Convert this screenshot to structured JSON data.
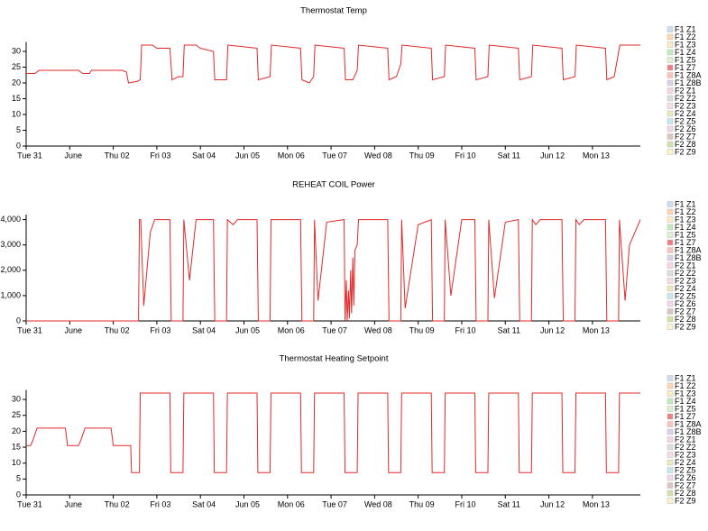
{
  "chart_data": [
    {
      "type": "line",
      "title": "Thermostat Temp",
      "xlim": [
        0,
        14.1
      ],
      "xticks": [
        {
          "value": 0,
          "label": "Tue 31"
        },
        {
          "value": 1,
          "label": "June"
        },
        {
          "value": 2,
          "label": "Thu 02"
        },
        {
          "value": 3,
          "label": "Fri 03"
        },
        {
          "value": 4,
          "label": "Sat 04"
        },
        {
          "value": 5,
          "label": "Jun 05"
        },
        {
          "value": 6,
          "label": "Mon 06"
        },
        {
          "value": 7,
          "label": "Tue 07"
        },
        {
          "value": 8,
          "label": "Wed 08"
        },
        {
          "value": 9,
          "label": "Thu 09"
        },
        {
          "value": 10,
          "label": "Fri 10"
        },
        {
          "value": 11,
          "label": "Sat 11"
        },
        {
          "value": 12,
          "label": "Jun 12"
        },
        {
          "value": 13,
          "label": "Mon 13"
        }
      ],
      "ylim": [
        0,
        33
      ],
      "yticks": [
        0,
        5,
        10,
        15,
        20,
        25,
        30
      ],
      "series": [
        {
          "name": "F1 Z1",
          "color": "#aec7e8",
          "x": [],
          "values": []
        },
        {
          "name": "F1 Z2",
          "color": "#ffbb78",
          "x": [],
          "values": []
        },
        {
          "name": "F1 Z3",
          "color": "#ffdd99",
          "x": [],
          "values": []
        },
        {
          "name": "F1 Z4",
          "color": "#98df8a",
          "x": [],
          "values": []
        },
        {
          "name": "F1 Z5",
          "color": "#c5e8b0",
          "x": [],
          "values": []
        },
        {
          "name": "F1 Z7",
          "color": "#e02a2a",
          "x": [
            0,
            0.2,
            0.3,
            1.2,
            1.3,
            1.45,
            1.5,
            2.2,
            2.3,
            2.35,
            2.55,
            2.62,
            2.65,
            2.9,
            3.0,
            3.3,
            3.35,
            3.5,
            3.6,
            3.63,
            3.9,
            4.0,
            4.3,
            4.33,
            4.6,
            4.63,
            5.3,
            5.33,
            5.6,
            5.63,
            6.3,
            6.33,
            6.5,
            6.6,
            6.63,
            7.3,
            7.33,
            7.5,
            7.6,
            7.63,
            8.3,
            8.33,
            8.5,
            8.6,
            8.63,
            9.3,
            9.33,
            9.6,
            9.63,
            10.3,
            10.33,
            10.6,
            10.63,
            11.3,
            11.33,
            11.6,
            11.63,
            12.3,
            12.33,
            12.6,
            12.63,
            13.3,
            13.33,
            13.5,
            13.63,
            14.1
          ],
          "values": [
            23,
            23,
            24,
            24,
            23,
            23,
            24,
            24,
            23.5,
            20,
            20.5,
            21,
            32,
            32,
            31,
            31,
            21,
            22,
            22,
            32,
            32,
            31,
            30,
            21,
            21,
            32,
            31,
            21,
            22,
            32,
            31,
            21,
            20,
            22,
            32,
            31,
            21,
            21,
            24,
            32,
            31,
            21,
            22,
            26,
            32,
            31,
            21,
            22,
            32,
            31,
            21,
            22,
            32,
            31,
            21,
            22,
            32,
            31,
            21,
            22,
            32,
            31,
            21,
            22,
            32,
            32
          ]
        },
        {
          "name": "F1 Z8A",
          "color": "#ff9896",
          "x": [],
          "values": []
        },
        {
          "name": "F1 Z8B",
          "color": "#c5b0d5",
          "x": [],
          "values": []
        },
        {
          "name": "F2 Z1",
          "color": "#f7b6d2",
          "x": [],
          "values": []
        },
        {
          "name": "F2 Z2",
          "color": "#c7c7c7",
          "x": [],
          "values": []
        },
        {
          "name": "F2 Z3",
          "color": "#f4c2d8",
          "x": [],
          "values": []
        },
        {
          "name": "F2 Z4",
          "color": "#dbdb8d",
          "x": [],
          "values": []
        },
        {
          "name": "F2 Z5",
          "color": "#9edae5",
          "x": [],
          "values": []
        },
        {
          "name": "F2 Z6",
          "color": "#e7bce0",
          "x": [],
          "values": []
        },
        {
          "name": "F2 Z7",
          "color": "#c49c94",
          "x": [],
          "values": []
        },
        {
          "name": "F2 Z8",
          "color": "#b5cf6b",
          "x": [],
          "values": []
        },
        {
          "name": "F2 Z9",
          "color": "#ffe9a0",
          "x": [],
          "values": []
        }
      ]
    },
    {
      "type": "line",
      "title": "REHEAT COIL Power",
      "xlim": [
        0,
        14.1
      ],
      "xticks": [
        {
          "value": 0,
          "label": "Tue 31"
        },
        {
          "value": 1,
          "label": "June"
        },
        {
          "value": 2,
          "label": "Thu 02"
        },
        {
          "value": 3,
          "label": "Fri 03"
        },
        {
          "value": 4,
          "label": "Sat 04"
        },
        {
          "value": 5,
          "label": "Jun 05"
        },
        {
          "value": 6,
          "label": "Mon 06"
        },
        {
          "value": 7,
          "label": "Tue 07"
        },
        {
          "value": 8,
          "label": "Wed 08"
        },
        {
          "value": 9,
          "label": "Thu 09"
        },
        {
          "value": 10,
          "label": "Fri 10"
        },
        {
          "value": 11,
          "label": "Sat 11"
        },
        {
          "value": 12,
          "label": "Jun 12"
        },
        {
          "value": 13,
          "label": "Mon 13"
        }
      ],
      "ylim": [
        0,
        4200
      ],
      "yticks": [
        0,
        {
          "value": 1000,
          "label": "1,000"
        },
        {
          "value": 2000,
          "label": "2,000"
        },
        {
          "value": 3000,
          "label": "3,000"
        },
        {
          "value": 4000,
          "label": "4,000"
        }
      ],
      "series": [
        {
          "name": "F1 Z1",
          "color": "#aec7e8",
          "x": [],
          "values": []
        },
        {
          "name": "F1 Z2",
          "color": "#ffbb78",
          "x": [],
          "values": []
        },
        {
          "name": "F1 Z3",
          "color": "#ffdd99",
          "x": [],
          "values": []
        },
        {
          "name": "F1 Z4",
          "color": "#98df8a",
          "x": [],
          "values": []
        },
        {
          "name": "F1 Z5",
          "color": "#c5e8b0",
          "x": [],
          "values": []
        },
        {
          "name": "F1 Z7",
          "color": "#e02a2a",
          "x": [
            0,
            2.58,
            2.6,
            2.63,
            2.7,
            2.85,
            2.95,
            3.3,
            3.33,
            3.6,
            3.62,
            3.75,
            3.9,
            4.3,
            4.33,
            4.6,
            4.62,
            4.75,
            4.85,
            5.3,
            5.33,
            5.6,
            5.62,
            6.3,
            6.33,
            6.6,
            6.62,
            6.7,
            6.9,
            7.3,
            7.32,
            7.35,
            7.37,
            7.4,
            7.42,
            7.45,
            7.47,
            7.5,
            7.52,
            7.55,
            7.6,
            7.63,
            8.3,
            8.33,
            8.6,
            8.62,
            8.7,
            9.0,
            9.3,
            9.33,
            9.6,
            9.62,
            9.75,
            10.0,
            10.3,
            10.33,
            10.6,
            10.62,
            10.75,
            11.0,
            11.3,
            11.33,
            11.6,
            11.62,
            11.7,
            11.8,
            12.3,
            12.33,
            12.6,
            12.62,
            12.7,
            12.8,
            13.3,
            13.33,
            13.6,
            13.62,
            13.75,
            13.85,
            14.1
          ],
          "values": [
            0,
            0,
            4000,
            4000,
            600,
            3500,
            4000,
            4000,
            0,
            0,
            4000,
            1600,
            4000,
            4000,
            0,
            0,
            4000,
            3800,
            4000,
            4000,
            0,
            0,
            4000,
            4000,
            0,
            0,
            4000,
            800,
            3900,
            4000,
            0,
            1600,
            0,
            1200,
            100,
            2000,
            300,
            2500,
            600,
            2800,
            3000,
            4000,
            4000,
            0,
            0,
            4000,
            500,
            3800,
            4000,
            0,
            0,
            4000,
            1000,
            4000,
            4000,
            0,
            0,
            4000,
            900,
            3900,
            4000,
            0,
            0,
            4000,
            3800,
            4000,
            4000,
            0,
            0,
            4000,
            3800,
            4000,
            4000,
            0,
            0,
            4000,
            800,
            3000,
            4000
          ]
        },
        {
          "name": "F1 Z8A",
          "color": "#ff9896",
          "x": [],
          "values": []
        },
        {
          "name": "F1 Z8B",
          "color": "#c5b0d5",
          "x": [],
          "values": []
        },
        {
          "name": "F2 Z1",
          "color": "#f7b6d2",
          "x": [],
          "values": []
        },
        {
          "name": "F2 Z2",
          "color": "#c7c7c7",
          "x": [],
          "values": []
        },
        {
          "name": "F2 Z3",
          "color": "#f4c2d8",
          "x": [],
          "values": []
        },
        {
          "name": "F2 Z4",
          "color": "#dbdb8d",
          "x": [],
          "values": []
        },
        {
          "name": "F2 Z5",
          "color": "#9edae5",
          "x": [],
          "values": []
        },
        {
          "name": "F2 Z6",
          "color": "#e7bce0",
          "x": [],
          "values": []
        },
        {
          "name": "F2 Z7",
          "color": "#c49c94",
          "x": [],
          "values": []
        },
        {
          "name": "F2 Z8",
          "color": "#b5cf6b",
          "x": [],
          "values": []
        },
        {
          "name": "F2 Z9",
          "color": "#ffe9a0",
          "x": [],
          "values": []
        }
      ]
    },
    {
      "type": "line",
      "title": "Thermostat Heating Setpoint",
      "xlim": [
        0,
        14.1
      ],
      "xticks": [
        {
          "value": 0,
          "label": "Tue 31"
        },
        {
          "value": 1,
          "label": "June"
        },
        {
          "value": 2,
          "label": "Thu 02"
        },
        {
          "value": 3,
          "label": "Fri 03"
        },
        {
          "value": 4,
          "label": "Sat 04"
        },
        {
          "value": 5,
          "label": "Jun 05"
        },
        {
          "value": 6,
          "label": "Mon 06"
        },
        {
          "value": 7,
          "label": "Tue 07"
        },
        {
          "value": 8,
          "label": "Wed 08"
        },
        {
          "value": 9,
          "label": "Thu 09"
        },
        {
          "value": 10,
          "label": "Fri 10"
        },
        {
          "value": 11,
          "label": "Sat 11"
        },
        {
          "value": 12,
          "label": "Jun 12"
        },
        {
          "value": 13,
          "label": "Mon 13"
        }
      ],
      "ylim": [
        0,
        33
      ],
      "yticks": [
        0,
        5,
        10,
        15,
        20,
        25,
        30
      ],
      "series": [
        {
          "name": "F1 Z1",
          "color": "#aec7e8",
          "x": [],
          "values": []
        },
        {
          "name": "F1 Z2",
          "color": "#ffbb78",
          "x": [],
          "values": []
        },
        {
          "name": "F1 Z3",
          "color": "#ffdd99",
          "x": [],
          "values": []
        },
        {
          "name": "F1 Z4",
          "color": "#98df8a",
          "x": [],
          "values": []
        },
        {
          "name": "F1 Z5",
          "color": "#c5e8b0",
          "x": [],
          "values": []
        },
        {
          "name": "F1 Z7",
          "color": "#e02a2a",
          "x": [
            0,
            0.1,
            0.15,
            0.2,
            0.25,
            0.9,
            0.95,
            1.2,
            1.25,
            1.3,
            1.35,
            1.95,
            2.0,
            2.4,
            2.42,
            2.6,
            2.62,
            3.3,
            3.32,
            3.6,
            3.62,
            4.3,
            4.32,
            4.6,
            4.62,
            5.3,
            5.32,
            5.6,
            5.62,
            6.3,
            6.32,
            6.6,
            6.62,
            7.3,
            7.32,
            7.6,
            7.62,
            8.3,
            8.32,
            8.6,
            8.62,
            9.3,
            9.32,
            9.6,
            9.62,
            10.3,
            10.32,
            10.6,
            10.62,
            11.3,
            11.32,
            11.6,
            11.62,
            12.3,
            12.32,
            12.6,
            12.62,
            13.3,
            13.32,
            13.6,
            13.62,
            14.1
          ],
          "values": [
            15.5,
            15.5,
            17,
            19,
            21,
            21,
            15.5,
            15.5,
            17,
            19,
            21,
            21,
            15.5,
            15.5,
            7,
            7,
            32,
            32,
            7,
            7,
            32,
            32,
            7,
            7,
            32,
            32,
            7,
            7,
            32,
            32,
            7,
            7,
            32,
            32,
            7,
            7,
            32,
            32,
            7,
            7,
            32,
            32,
            7,
            7,
            32,
            32,
            7,
            7,
            32,
            32,
            7,
            7,
            32,
            32,
            7,
            7,
            32,
            32,
            7,
            7,
            32,
            32
          ]
        },
        {
          "name": "F1 Z8A",
          "color": "#ff9896",
          "x": [],
          "values": []
        },
        {
          "name": "F1 Z8B",
          "color": "#c5b0d5",
          "x": [],
          "values": []
        },
        {
          "name": "F2 Z1",
          "color": "#f7b6d2",
          "x": [],
          "values": []
        },
        {
          "name": "F2 Z2",
          "color": "#c7c7c7",
          "x": [],
          "values": []
        },
        {
          "name": "F2 Z3",
          "color": "#f4c2d8",
          "x": [],
          "values": []
        },
        {
          "name": "F2 Z4",
          "color": "#dbdb8d",
          "x": [],
          "values": []
        },
        {
          "name": "F2 Z5",
          "color": "#9edae5",
          "x": [],
          "values": []
        },
        {
          "name": "F2 Z6",
          "color": "#e7bce0",
          "x": [],
          "values": []
        },
        {
          "name": "F2 Z7",
          "color": "#c49c94",
          "x": [],
          "values": []
        },
        {
          "name": "F2 Z8",
          "color": "#b5cf6b",
          "x": [],
          "values": []
        },
        {
          "name": "F2 Z9",
          "color": "#ffe9a0",
          "x": [],
          "values": []
        }
      ]
    }
  ]
}
